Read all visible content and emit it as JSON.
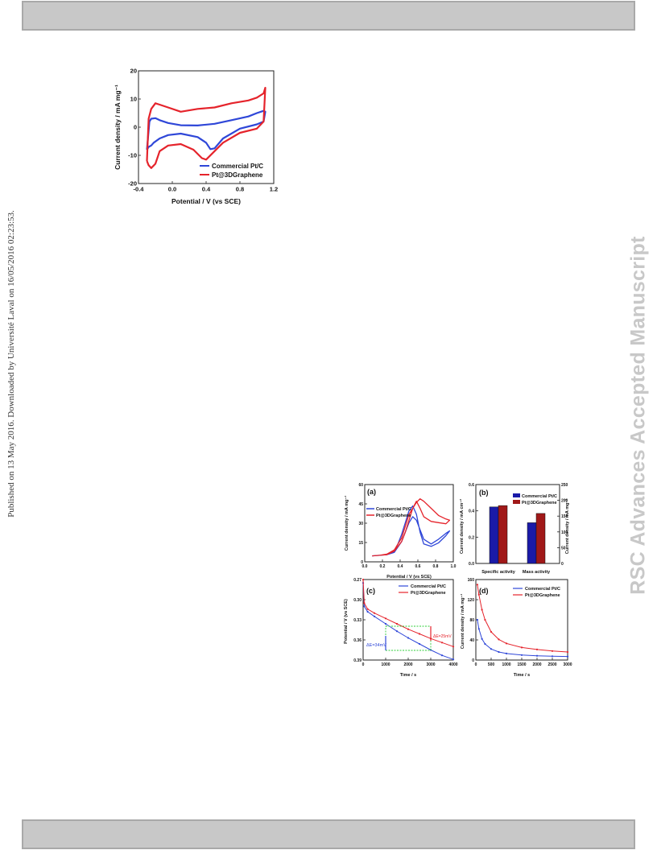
{
  "side_text": {
    "left": "Published on 13 May 2016. Downloaded by Université Laval on 16/05/2016 02:23:53.",
    "right": "RSC Advances Accepted Manuscript"
  },
  "colors": {
    "blue": "#2f47d8",
    "red": "#e5232b",
    "green": "#2fcf3a",
    "watermark": "#c8c8c8"
  },
  "chart_data": [
    {
      "type": "line",
      "xlabel": "Potential / V (vs SCE)",
      "ylabel": "Current density / mA mg⁻¹",
      "xlim": [
        -0.4,
        1.2
      ],
      "ylim": [
        -20,
        20
      ],
      "xticks": [
        "-0.4",
        "0.0",
        "0.4",
        "0.8",
        "1.2"
      ],
      "yticks": [
        "20",
        "10",
        "0",
        "-10",
        "-20"
      ],
      "legend_position": "bottom-right",
      "series": [
        {
          "name": "Commercial Pt/C",
          "x": [
            -0.3,
            -0.27,
            -0.25,
            -0.2,
            -0.15,
            -0.05,
            0.1,
            0.3,
            0.5,
            0.7,
            0.9,
            1.0,
            1.08,
            1.1,
            1.08,
            1.0,
            0.8,
            0.6,
            0.5,
            0.45,
            0.4,
            0.3,
            0.1,
            -0.05,
            -0.15,
            -0.22,
            -0.25,
            -0.28,
            -0.3
          ],
          "y": [
            -8,
            2,
            3,
            3.2,
            2.5,
            1.5,
            0.7,
            0.6,
            1.2,
            2.5,
            3.8,
            5,
            5.8,
            5.5,
            2,
            1,
            -0.5,
            -4,
            -7.5,
            -7.8,
            -5.5,
            -3.5,
            -2.3,
            -2.8,
            -4,
            -5.5,
            -6.5,
            -7,
            -8
          ]
        },
        {
          "name": "Pt@3DGraphene",
          "x": [
            -0.3,
            -0.28,
            -0.25,
            -0.2,
            -0.15,
            -0.05,
            0.1,
            0.3,
            0.5,
            0.7,
            0.9,
            1.0,
            1.08,
            1.1,
            1.08,
            1.0,
            0.8,
            0.6,
            0.5,
            0.4,
            0.35,
            0.25,
            0.1,
            -0.05,
            -0.15,
            -0.2,
            -0.25,
            -0.28,
            -0.3
          ],
          "y": [
            -12,
            3,
            6.5,
            8.5,
            8,
            7,
            5.5,
            6.5,
            7,
            8.5,
            9.5,
            10.5,
            12,
            14,
            2,
            -0.5,
            -2,
            -5.5,
            -8.5,
            -11.5,
            -11,
            -8,
            -6,
            -6.5,
            -8.5,
            -13,
            -14.5,
            -13.5,
            -12
          ]
        }
      ]
    },
    {
      "type": "line",
      "panel_label": "(a)",
      "xlabel": "Potential / V (vs SCE)",
      "ylabel": "Current density / mA mg⁻¹",
      "xlim": [
        -0.1,
        1.1
      ],
      "ylim": [
        -5,
        60
      ],
      "xticks": [
        "0.0",
        "0.2",
        "0.4",
        "0.6",
        "0.8",
        "1.0"
      ],
      "yticks": [
        "60",
        "45",
        "30",
        "15",
        "0"
      ],
      "series": [
        {
          "name": "Commercial Pt/C",
          "x": [
            0.0,
            0.1,
            0.2,
            0.3,
            0.4,
            0.5,
            0.55,
            0.6,
            0.65,
            0.7,
            0.8,
            0.9,
            1.0,
            1.05,
            1.0,
            0.9,
            0.8,
            0.7,
            0.65,
            0.6,
            0.55,
            0.5,
            0.45,
            0.4,
            0.35,
            0.3,
            0.2,
            0.1,
            0.0
          ],
          "y": [
            0,
            0.5,
            1,
            3,
            12,
            28,
            33,
            30,
            22,
            14,
            10,
            14,
            19,
            21,
            17,
            11,
            8,
            10,
            20,
            35,
            42,
            38,
            28,
            18,
            10,
            4,
            1,
            0.5,
            0
          ]
        },
        {
          "name": "Pt@3DGraphene",
          "x": [
            0.0,
            0.1,
            0.2,
            0.3,
            0.4,
            0.5,
            0.6,
            0.65,
            0.7,
            0.8,
            0.9,
            1.0,
            1.05,
            1.0,
            0.9,
            0.8,
            0.7,
            0.65,
            0.6,
            0.55,
            0.5,
            0.45,
            0.4,
            0.3,
            0.2,
            0.1,
            0.0
          ],
          "y": [
            0,
            0.5,
            1.5,
            5,
            15,
            35,
            45,
            48,
            46,
            40,
            34,
            31,
            30,
            27,
            28,
            29,
            33,
            40,
            46,
            40,
            30,
            20,
            12,
            4,
            1,
            0.5,
            0
          ]
        }
      ]
    },
    {
      "type": "bar",
      "panel_label": "(b)",
      "categories": [
        "Specific activity",
        "Mass activity"
      ],
      "ylabel": "Current density / mA cm⁻²",
      "y2label": "Current density / mA mg⁻¹",
      "ylim": [
        0,
        0.6
      ],
      "y2lim": [
        0,
        250
      ],
      "yticks": [
        "0.6",
        "0.4",
        "0.2",
        "0.0"
      ],
      "y2ticks": [
        "250",
        "200",
        "150",
        "100",
        "50",
        "0"
      ],
      "series": [
        {
          "name": "Commercial Pt/C",
          "values": [
            0.43,
            0.31
          ]
        },
        {
          "name": "Pt@3DGraphene",
          "values": [
            0.44,
            0.38
          ]
        }
      ]
    },
    {
      "type": "line",
      "panel_label": "(c)",
      "xlabel": "Time / s",
      "ylabel": "Potential / V (vs SCE)",
      "xlim": [
        0,
        4000
      ],
      "ylim": [
        0.39,
        0.27
      ],
      "xticks": [
        "0",
        "1000",
        "2000",
        "3000",
        "4000"
      ],
      "yticks": [
        "0.27",
        "0.30",
        "0.33",
        "0.36",
        "0.39"
      ],
      "annotations": [
        "ΔE=34mV",
        "ΔE=25mV"
      ],
      "series": [
        {
          "name": "Commercial Pt/C",
          "x": [
            0,
            50,
            200,
            500,
            1000,
            1500,
            2000,
            2500,
            3000,
            3500,
            4000
          ],
          "y": [
            0.275,
            0.31,
            0.318,
            0.325,
            0.336,
            0.347,
            0.357,
            0.366,
            0.375,
            0.383,
            0.389
          ]
        },
        {
          "name": "Pt@3DGraphene",
          "x": [
            0,
            50,
            200,
            500,
            1000,
            1500,
            2000,
            2500,
            3000,
            3500,
            4000
          ],
          "y": [
            0.27,
            0.305,
            0.314,
            0.32,
            0.328,
            0.336,
            0.344,
            0.351,
            0.358,
            0.364,
            0.37
          ]
        }
      ]
    },
    {
      "type": "line",
      "panel_label": "(d)",
      "xlabel": "Time / s",
      "ylabel": "Current density / mA mg⁻¹",
      "xlim": [
        0,
        3000
      ],
      "ylim": [
        0,
        160
      ],
      "xticks": [
        "0",
        "500",
        "1000",
        "1500",
        "2000",
        "2500",
        "3000"
      ],
      "yticks": [
        "160",
        "120",
        "80",
        "40",
        "0"
      ],
      "series": [
        {
          "name": "Commercial Pt/C",
          "x": [
            50,
            100,
            200,
            300,
            500,
            750,
            1000,
            1500,
            2000,
            2500,
            3000
          ],
          "y": [
            80,
            62,
            42,
            32,
            22,
            16,
            13,
            10,
            8.5,
            7.5,
            7
          ]
        },
        {
          "name": "Pt@3DGraphene",
          "x": [
            50,
            100,
            200,
            300,
            500,
            750,
            1000,
            1500,
            2000,
            2500,
            3000
          ],
          "y": [
            150,
            130,
            100,
            80,
            56,
            41,
            33,
            25,
            21,
            18,
            16
          ]
        }
      ]
    }
  ]
}
